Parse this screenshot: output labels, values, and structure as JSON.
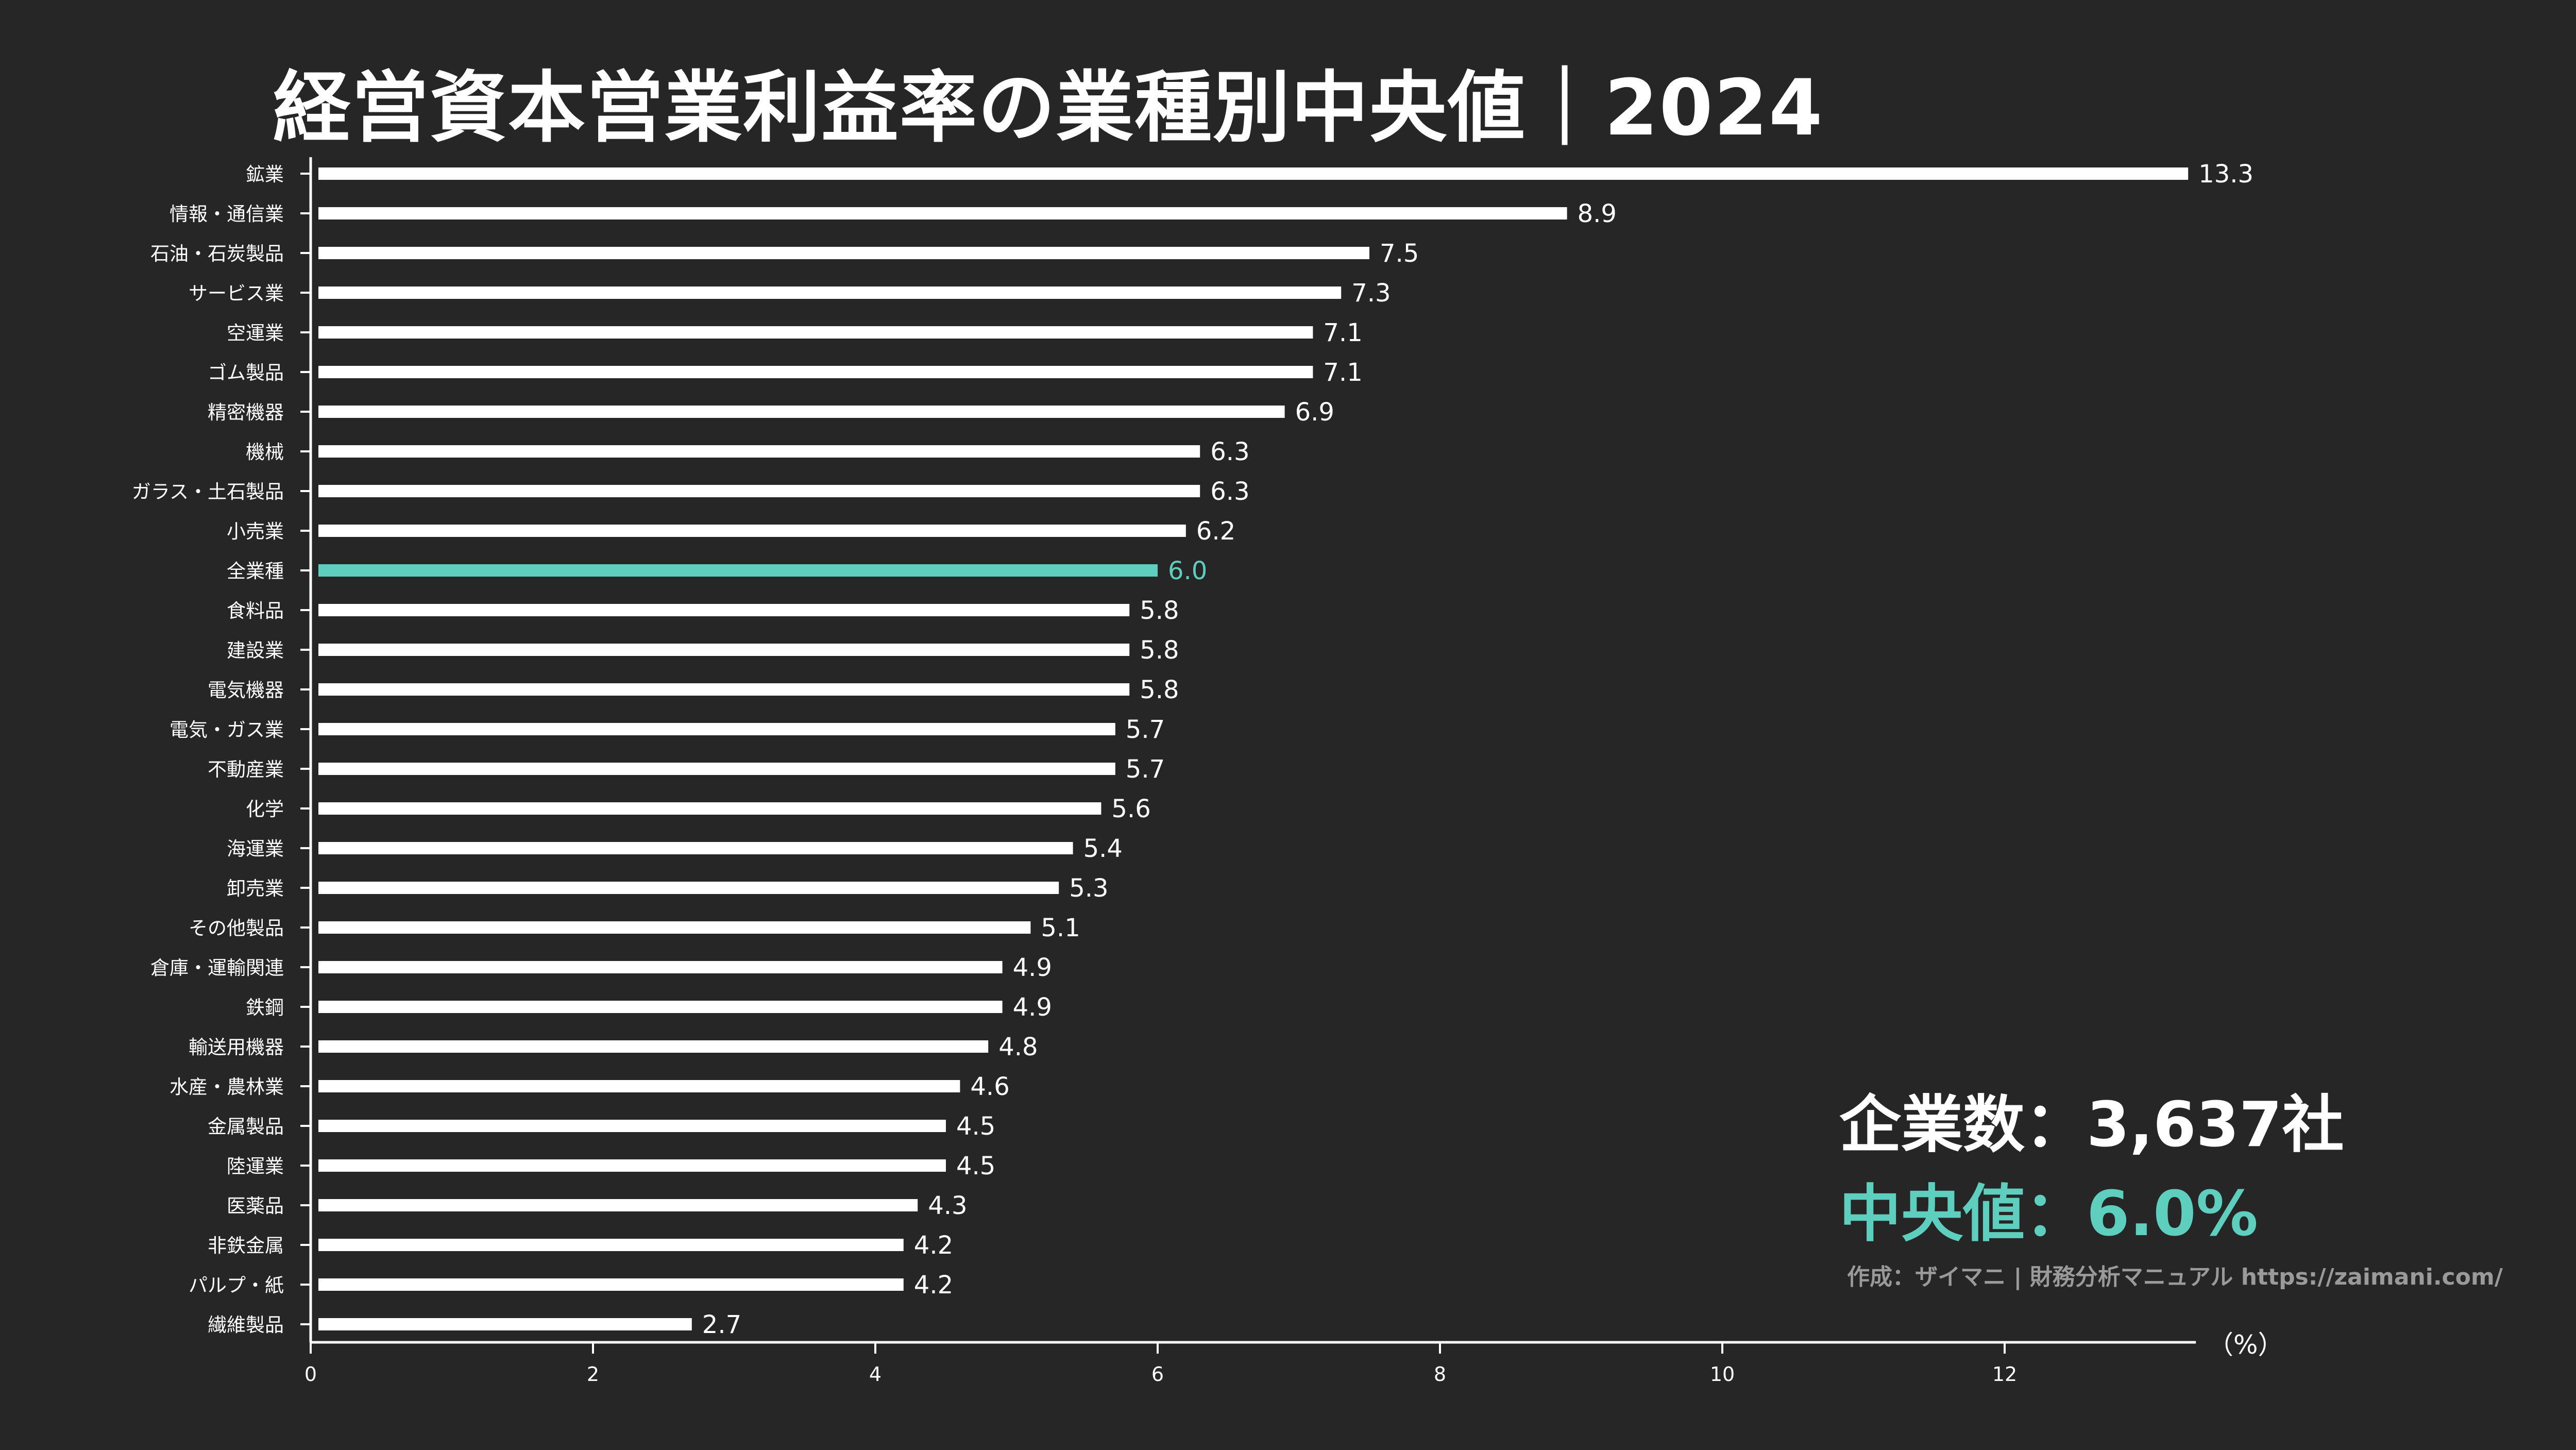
{
  "header": {
    "title": "経営資本営業利益率の業種別中央値｜2024"
  },
  "stats": {
    "company_count": "企業数：3,637社",
    "median": "中央値：6.0%"
  },
  "credit": "作成：ザイマニ | 財務分析マニュアル https://zaimani.com/",
  "colors": {
    "background": "#262626",
    "bar": "#ffffff",
    "highlight": "#5ecfbf",
    "text": "#ffffff"
  },
  "chart_data": {
    "type": "bar",
    "orientation": "horizontal",
    "unit_label": "（%）",
    "xlim": [
      0,
      13.3
    ],
    "xticks": [
      0,
      2,
      4,
      6,
      8,
      10,
      12
    ],
    "highlight_category": "全業種",
    "grid": false,
    "categories": [
      "鉱業",
      "情報・通信業",
      "石油・石炭製品",
      "サービス業",
      "空運業",
      "ゴム製品",
      "精密機器",
      "機械",
      "ガラス・土石製品",
      "小売業",
      "全業種",
      "食料品",
      "建設業",
      "電気機器",
      "電気・ガス業",
      "不動産業",
      "化学",
      "海運業",
      "卸売業",
      "その他製品",
      "倉庫・運輸関連",
      "鉄鋼",
      "輸送用機器",
      "水産・農林業",
      "金属製品",
      "陸運業",
      "医薬品",
      "非鉄金属",
      "パルプ・紙",
      "繊維製品"
    ],
    "values": [
      13.3,
      8.9,
      7.5,
      7.3,
      7.1,
      7.1,
      6.9,
      6.3,
      6.3,
      6.2,
      6.0,
      5.8,
      5.8,
      5.8,
      5.7,
      5.7,
      5.6,
      5.4,
      5.3,
      5.1,
      4.9,
      4.9,
      4.8,
      4.6,
      4.5,
      4.5,
      4.3,
      4.2,
      4.2,
      2.7
    ],
    "value_labels": [
      "13.3",
      "8.9",
      "7.5",
      "7.3",
      "7.1",
      "7.1",
      "6.9",
      "6.3",
      "6.3",
      "6.2",
      "6.0",
      "5.8",
      "5.8",
      "5.8",
      "5.7",
      "5.7",
      "5.6",
      "5.4",
      "5.3",
      "5.1",
      "4.9",
      "4.9",
      "4.8",
      "4.6",
      "4.5",
      "4.5",
      "4.3",
      "4.2",
      "4.2",
      "2.7"
    ]
  }
}
